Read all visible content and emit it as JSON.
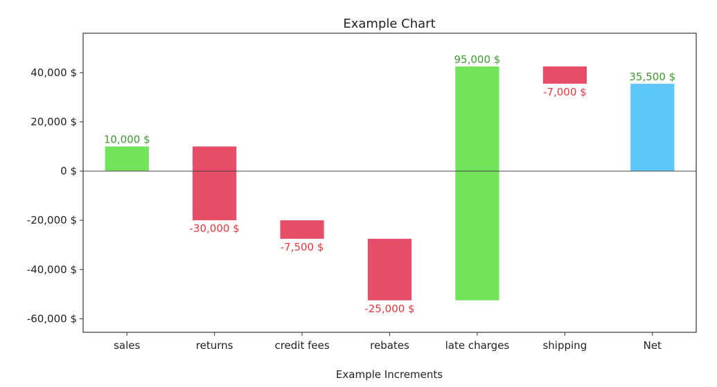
{
  "chart_data": {
    "type": "bar",
    "subtype": "waterfall",
    "title": "Example Chart",
    "xlabel": "Example Increments",
    "ylabel": "",
    "categories": [
      "sales",
      "returns",
      "credit fees",
      "rebates",
      "late charges",
      "shipping",
      "Net"
    ],
    "values": [
      10000,
      -30000,
      -7500,
      -25000,
      95000,
      -7000,
      35500
    ],
    "bottoms": [
      0,
      -20000,
      -27500,
      -52500,
      -52500,
      35500,
      0
    ],
    "tops": [
      10000,
      10000,
      -20000,
      -27500,
      42500,
      42500,
      35500
    ],
    "data_labels": [
      "10,000 $",
      "-30,000 $",
      "-7,500 $",
      "-25,000 $",
      "95,000 $",
      "-7,000 $",
      "35,500 $"
    ],
    "ylim": [
      -65500,
      56000
    ],
    "yticks": [
      -60000,
      -40000,
      -20000,
      0,
      20000,
      40000
    ],
    "ytick_labels": [
      "-60,000 $",
      "-40,000 $",
      "-20,000 $",
      "0 $",
      "20,000 $",
      "40,000 $"
    ],
    "grid": false,
    "legend": null,
    "zero_line": true,
    "colors": {
      "increase": "#72e35a",
      "decrease": "#e64d68",
      "total": "#5ec8fa",
      "label_positive": "#3c9a2e",
      "label_negative": "#e8353a",
      "axis": "#333333",
      "zero_line": "#444444"
    }
  }
}
